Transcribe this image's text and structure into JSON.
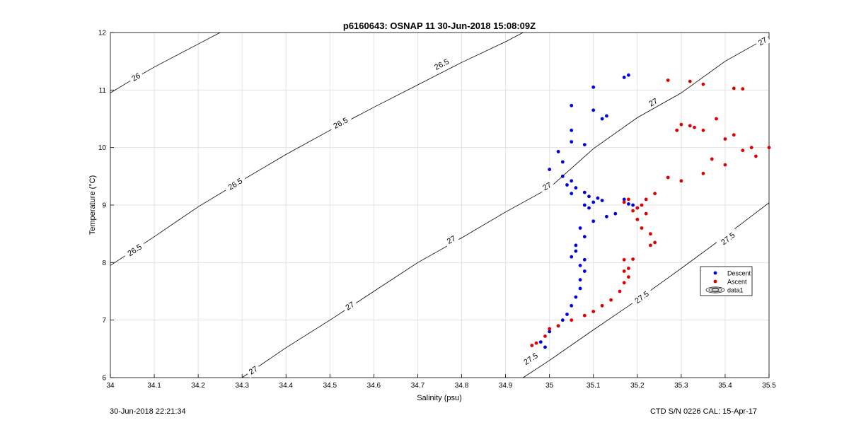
{
  "chart_data": {
    "type": "scatter",
    "title": "p6160643: OSNAP 11 30-Jun-2018 15:08:09Z",
    "xlabel": "Salinity (psu)",
    "ylabel": "Temperature (°C)",
    "xlim": [
      34,
      35.5
    ],
    "ylim": [
      6,
      12
    ],
    "xticks": [
      "34",
      "34.1",
      "34.2",
      "34.3",
      "34.4",
      "34.5",
      "34.6",
      "34.7",
      "34.8",
      "34.9",
      "35",
      "35.1",
      "35.2",
      "35.3",
      "35.4",
      "35.5"
    ],
    "yticks": [
      "6",
      "7",
      "8",
      "9",
      "10",
      "11",
      "12"
    ],
    "grid": true,
    "legend_position": "right",
    "legend": [
      {
        "label": "Descent",
        "color": "#0000dd",
        "icon": "dot-icon"
      },
      {
        "label": "Ascent",
        "color": "#dd0000",
        "icon": "dot-icon"
      },
      {
        "label": "data1",
        "color": "#000000",
        "icon": "contour-icon"
      }
    ],
    "contours": [
      {
        "level": "26",
        "points": [
          [
            34.0,
            10.95
          ],
          [
            34.05,
            11.18
          ],
          [
            34.1,
            11.4
          ],
          [
            34.2,
            11.8
          ],
          [
            34.25,
            12.0
          ]
        ],
        "labels": [
          [
            34.058,
            11.23
          ]
        ]
      },
      {
        "level": "26.5",
        "points": [
          [
            34.0,
            7.95
          ],
          [
            34.1,
            8.45
          ],
          [
            34.2,
            8.97
          ],
          [
            34.3,
            9.43
          ],
          [
            34.4,
            9.88
          ],
          [
            34.5,
            10.3
          ],
          [
            34.6,
            10.7
          ],
          [
            34.7,
            11.09
          ],
          [
            34.8,
            11.48
          ],
          [
            34.9,
            11.84
          ],
          [
            34.94,
            12.0
          ]
        ],
        "labels": [
          [
            34.055,
            8.22
          ],
          [
            34.284,
            9.37
          ],
          [
            34.524,
            10.43
          ],
          [
            34.754,
            11.45
          ]
        ]
      },
      {
        "level": "27",
        "points": [
          [
            34.3,
            6.0
          ],
          [
            34.4,
            6.52
          ],
          [
            34.5,
            7.0
          ],
          [
            34.6,
            7.5
          ],
          [
            34.7,
            8.0
          ],
          [
            34.8,
            8.43
          ],
          [
            34.9,
            8.88
          ],
          [
            35.0,
            9.3
          ],
          [
            35.1,
            9.98
          ],
          [
            35.2,
            10.52
          ],
          [
            35.3,
            10.95
          ],
          [
            35.4,
            11.5
          ],
          [
            35.5,
            11.93
          ]
        ],
        "labels": [
          [
            34.325,
            6.13
          ],
          [
            34.545,
            7.25
          ],
          [
            34.776,
            8.4
          ],
          [
            34.994,
            9.33
          ],
          [
            35.236,
            10.79
          ],
          [
            35.485,
            11.85
          ]
        ]
      },
      {
        "level": "27.5",
        "points": [
          [
            34.94,
            6.0
          ],
          [
            35.0,
            6.3
          ],
          [
            35.1,
            6.83
          ],
          [
            35.2,
            7.35
          ],
          [
            35.3,
            7.9
          ],
          [
            35.4,
            8.46
          ],
          [
            35.5,
            9.04
          ]
        ],
        "labels": [
          [
            34.957,
            6.33
          ],
          [
            35.21,
            7.4
          ],
          [
            35.406,
            8.42
          ]
        ]
      }
    ],
    "series": [
      {
        "name": "Descent",
        "color": "#0000dd",
        "points": [
          [
            35.17,
            11.22
          ],
          [
            35.18,
            11.26
          ],
          [
            35.1,
            11.05
          ],
          [
            35.05,
            10.73
          ],
          [
            35.1,
            10.65
          ],
          [
            35.13,
            10.55
          ],
          [
            35.12,
            10.5
          ],
          [
            35.05,
            10.3
          ],
          [
            35.05,
            10.1
          ],
          [
            35.08,
            10.05
          ],
          [
            35.02,
            9.93
          ],
          [
            35.03,
            9.75
          ],
          [
            35.0,
            9.62
          ],
          [
            35.03,
            9.5
          ],
          [
            35.05,
            9.42
          ],
          [
            35.04,
            9.35
          ],
          [
            35.06,
            9.3
          ],
          [
            35.08,
            9.22
          ],
          [
            35.05,
            9.2
          ],
          [
            35.09,
            9.15
          ],
          [
            35.11,
            9.12
          ],
          [
            35.1,
            9.05
          ],
          [
            35.08,
            9.0
          ],
          [
            35.09,
            8.95
          ],
          [
            35.12,
            9.08
          ],
          [
            35.15,
            8.85
          ],
          [
            35.13,
            8.8
          ],
          [
            35.1,
            8.72
          ],
          [
            35.07,
            8.6
          ],
          [
            35.08,
            8.45
          ],
          [
            35.06,
            8.3
          ],
          [
            35.06,
            8.2
          ],
          [
            35.05,
            8.1
          ],
          [
            35.08,
            8.05
          ],
          [
            35.07,
            7.95
          ],
          [
            35.08,
            7.85
          ],
          [
            35.07,
            7.7
          ],
          [
            35.07,
            7.55
          ],
          [
            35.06,
            7.4
          ],
          [
            35.05,
            7.25
          ],
          [
            35.04,
            7.1
          ],
          [
            35.03,
            7.0
          ],
          [
            35.02,
            6.9
          ],
          [
            35.0,
            6.8
          ],
          [
            34.98,
            6.62
          ],
          [
            34.99,
            6.53
          ],
          [
            35.17,
            9.1
          ],
          [
            35.18,
            9.02
          ],
          [
            35.19,
            9.0
          ],
          [
            35.2,
            8.95
          ]
        ]
      },
      {
        "name": "Ascent",
        "color": "#dd0000",
        "points": [
          [
            35.27,
            11.17
          ],
          [
            35.32,
            11.15
          ],
          [
            35.35,
            11.1
          ],
          [
            35.42,
            11.03
          ],
          [
            35.44,
            11.02
          ],
          [
            35.3,
            10.4
          ],
          [
            35.32,
            10.38
          ],
          [
            35.33,
            10.35
          ],
          [
            35.29,
            10.3
          ],
          [
            35.35,
            10.3
          ],
          [
            35.38,
            10.5
          ],
          [
            35.42,
            10.22
          ],
          [
            35.4,
            10.15
          ],
          [
            35.46,
            10.0
          ],
          [
            35.5,
            10.0
          ],
          [
            35.47,
            9.85
          ],
          [
            35.44,
            9.95
          ],
          [
            35.37,
            9.8
          ],
          [
            35.4,
            9.7
          ],
          [
            35.35,
            9.55
          ],
          [
            35.3,
            9.42
          ],
          [
            35.27,
            9.48
          ],
          [
            35.24,
            9.2
          ],
          [
            35.22,
            9.1
          ],
          [
            35.21,
            9.0
          ],
          [
            35.18,
            9.1
          ],
          [
            35.17,
            9.05
          ],
          [
            35.2,
            8.95
          ],
          [
            35.19,
            8.9
          ],
          [
            35.22,
            8.85
          ],
          [
            35.2,
            8.75
          ],
          [
            35.21,
            8.6
          ],
          [
            35.23,
            8.5
          ],
          [
            35.24,
            8.35
          ],
          [
            35.23,
            8.3
          ],
          [
            35.17,
            8.05
          ],
          [
            35.19,
            8.06
          ],
          [
            35.18,
            7.9
          ],
          [
            35.17,
            7.85
          ],
          [
            35.18,
            7.75
          ],
          [
            35.17,
            7.65
          ],
          [
            35.16,
            7.5
          ],
          [
            35.14,
            7.35
          ],
          [
            35.12,
            7.25
          ],
          [
            35.1,
            7.15
          ],
          [
            35.08,
            7.08
          ],
          [
            35.05,
            7.0
          ],
          [
            35.02,
            6.9
          ],
          [
            35.0,
            6.85
          ],
          [
            34.99,
            6.72
          ],
          [
            34.97,
            6.6
          ],
          [
            34.96,
            6.56
          ]
        ]
      }
    ]
  },
  "footer": {
    "left": "30-Jun-2018 22:21:34",
    "right": "CTD S/N 0226  CAL: 15-Apr-17"
  }
}
